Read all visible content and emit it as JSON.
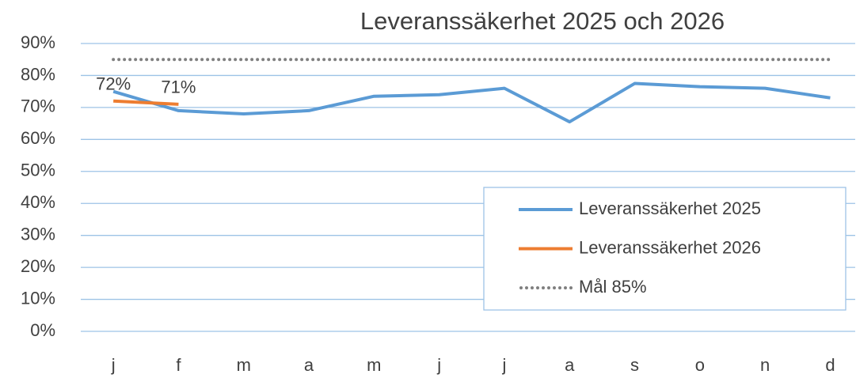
{
  "chart_data": {
    "type": "line",
    "title": "Leveranssäkerhet  2025 och 2026",
    "categories": [
      "j",
      "f",
      "m",
      "a",
      "m",
      "j",
      "j",
      "a",
      "s",
      "o",
      "n",
      "d"
    ],
    "series": [
      {
        "name": "Leveranssäkerhet 2025",
        "color": "#5b9bd5",
        "values": [
          75,
          69,
          68,
          69,
          73.5,
          74,
          76,
          65.5,
          77.5,
          76.5,
          76,
          73
        ]
      },
      {
        "name": "Leveranssäkerhet 2026",
        "color": "#ed7d31",
        "values": [
          72,
          71,
          null,
          null,
          null,
          null,
          null,
          null,
          null,
          null,
          null,
          null
        ],
        "value_labels": [
          "72%",
          "71%",
          null,
          null,
          null,
          null,
          null,
          null,
          null,
          null,
          null,
          null
        ]
      },
      {
        "name": "Mål 85%",
        "color": "#7f7f7f",
        "dash": "dotted",
        "values": [
          85,
          85,
          85,
          85,
          85,
          85,
          85,
          85,
          85,
          85,
          85,
          85
        ]
      }
    ],
    "ylim": [
      0,
      90
    ],
    "yticks": [
      {
        "value": 0,
        "label": "0%"
      },
      {
        "value": 10,
        "label": "10%"
      },
      {
        "value": 20,
        "label": "20%"
      },
      {
        "value": 30,
        "label": "30%"
      },
      {
        "value": 40,
        "label": "40%"
      },
      {
        "value": 50,
        "label": "50%"
      },
      {
        "value": 60,
        "label": "60%"
      },
      {
        "value": 70,
        "label": "70%"
      },
      {
        "value": 80,
        "label": "80%"
      },
      {
        "value": 90,
        "label": "90%"
      }
    ],
    "grid": true,
    "legend": "lower right"
  }
}
